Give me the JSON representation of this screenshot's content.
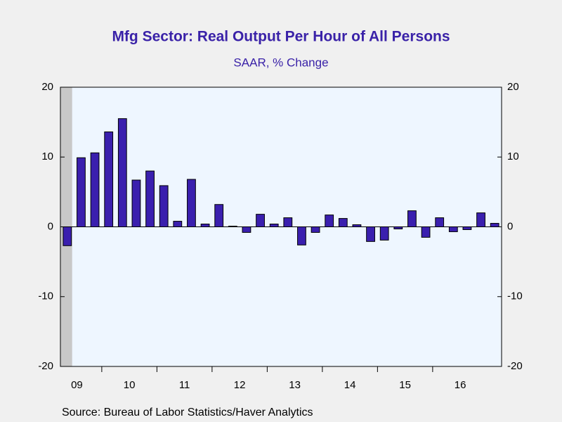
{
  "chart_data": {
    "type": "bar",
    "title": "Mfg Sector: Real Output Per Hour of All Persons",
    "subtitle": "SAAR, % Change",
    "source": "Source:  Bureau of Labor Statistics/Haver Analytics",
    "year_labels": [
      "09",
      "10",
      "11",
      "12",
      "13",
      "14",
      "15",
      "16"
    ],
    "values": [
      -2.7,
      9.9,
      10.6,
      13.6,
      15.5,
      6.7,
      8.0,
      5.9,
      0.8,
      6.8,
      0.4,
      3.2,
      0.1,
      -0.8,
      1.8,
      0.4,
      1.3,
      -2.6,
      -0.8,
      1.7,
      1.2,
      0.3,
      -2.1,
      -1.9,
      -0.3,
      2.3,
      -1.5,
      1.3,
      -0.7,
      -0.4,
      2.0,
      0.5
    ],
    "color": "#3a1fae",
    "ylim": [
      -20,
      20
    ],
    "yticks": [
      -20,
      -10,
      0,
      10,
      20
    ],
    "y2lim": [
      -20,
      20
    ],
    "y2ticks": [
      -20,
      -10,
      0,
      10,
      20
    ]
  }
}
